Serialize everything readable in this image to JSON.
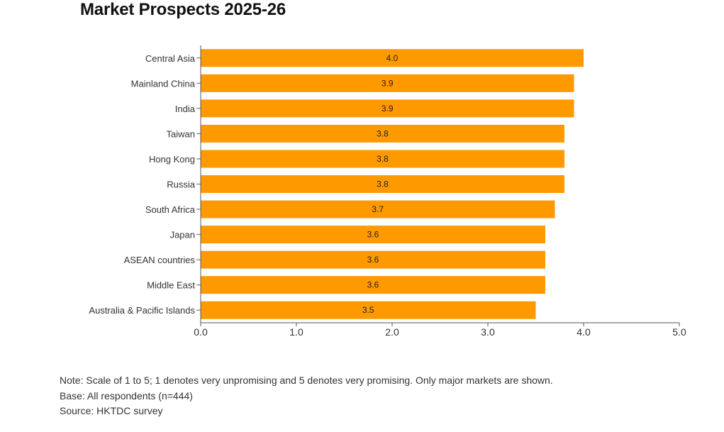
{
  "chart_data": {
    "type": "bar",
    "orientation": "horizontal",
    "title": "Market Prospects 2025-26",
    "categories": [
      "Central Asia",
      "Mainland China",
      "India",
      "Taiwan",
      "Hong Kong",
      "Russia",
      "South Africa",
      "Japan",
      "ASEAN countries",
      "Middle East",
      "Australia & Pacific Islands"
    ],
    "values": [
      4.0,
      3.9,
      3.9,
      3.8,
      3.8,
      3.8,
      3.7,
      3.6,
      3.6,
      3.6,
      3.5
    ],
    "value_labels": [
      "4.0",
      "3.9",
      "3.9",
      "3.8",
      "3.8",
      "3.8",
      "3.7",
      "3.6",
      "3.6",
      "3.6",
      "3.5"
    ],
    "xlim": [
      0,
      5
    ],
    "x_ticks": [
      "0.0",
      "1.0",
      "2.0",
      "3.0",
      "4.0",
      "5.0"
    ],
    "xlabel": "",
    "ylabel": "",
    "grid": false,
    "bar_color": "#FF9900"
  },
  "notes": {
    "note": "Note: Scale of 1 to 5; 1 denotes very unpromising and 5 denotes very promising. Only major markets are shown.",
    "base": "Base: All respondents (n=444)",
    "source": "Source: HKTDC survey"
  }
}
